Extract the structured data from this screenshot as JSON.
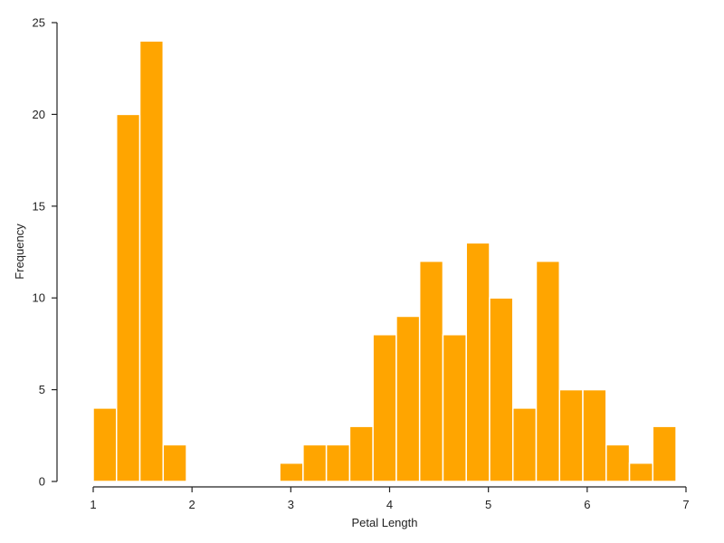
{
  "chart_data": {
    "type": "bar",
    "title": "",
    "xlabel": "Petal Length",
    "ylabel": "Frequency",
    "xlim": [
      1,
      7
    ],
    "ylim": [
      0,
      25
    ],
    "x_ticks": [
      "1",
      "2",
      "3",
      "4",
      "5",
      "6",
      "7"
    ],
    "y_ticks": [
      "0",
      "5",
      "10",
      "15",
      "20",
      "25"
    ],
    "grid": false,
    "legend": "none",
    "bar_color": "#FFA500",
    "bins": [
      {
        "start": 1.0,
        "end": 1.236,
        "count": 4
      },
      {
        "start": 1.236,
        "end": 1.472,
        "count": 20
      },
      {
        "start": 1.472,
        "end": 1.708,
        "count": 24
      },
      {
        "start": 1.708,
        "end": 1.944,
        "count": 2
      },
      {
        "start": 1.944,
        "end": 2.18,
        "count": 0
      },
      {
        "start": 2.18,
        "end": 2.416,
        "count": 0
      },
      {
        "start": 2.416,
        "end": 2.652,
        "count": 0
      },
      {
        "start": 2.652,
        "end": 2.888,
        "count": 0
      },
      {
        "start": 2.888,
        "end": 3.124,
        "count": 1
      },
      {
        "start": 3.124,
        "end": 3.36,
        "count": 2
      },
      {
        "start": 3.36,
        "end": 3.596,
        "count": 2
      },
      {
        "start": 3.596,
        "end": 3.832,
        "count": 3
      },
      {
        "start": 3.832,
        "end": 4.068,
        "count": 8
      },
      {
        "start": 4.068,
        "end": 4.304,
        "count": 9
      },
      {
        "start": 4.304,
        "end": 4.54,
        "count": 12
      },
      {
        "start": 4.54,
        "end": 4.776,
        "count": 8
      },
      {
        "start": 4.776,
        "end": 5.012,
        "count": 13
      },
      {
        "start": 5.012,
        "end": 5.248,
        "count": 10
      },
      {
        "start": 5.248,
        "end": 5.484,
        "count": 4
      },
      {
        "start": 5.484,
        "end": 5.72,
        "count": 12
      },
      {
        "start": 5.72,
        "end": 5.956,
        "count": 5
      },
      {
        "start": 5.956,
        "end": 6.192,
        "count": 5
      },
      {
        "start": 6.192,
        "end": 6.428,
        "count": 2
      },
      {
        "start": 6.428,
        "end": 6.664,
        "count": 1
      },
      {
        "start": 6.664,
        "end": 6.9,
        "count": 3
      }
    ]
  }
}
